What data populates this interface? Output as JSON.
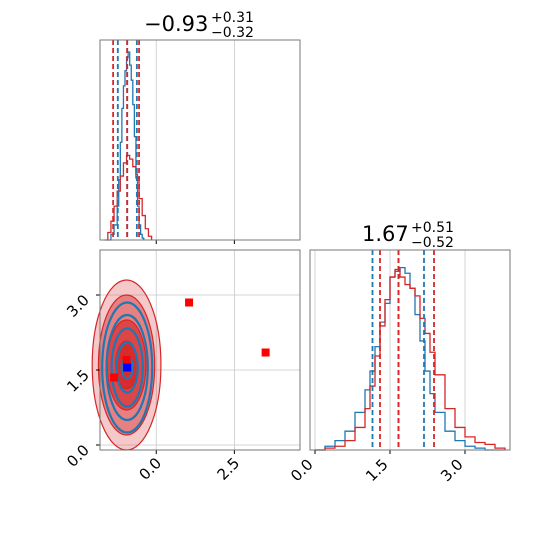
{
  "colors": {
    "blue": "#1f77b4",
    "red": "#d62728",
    "marker_red": "#ff0000",
    "marker_blue": "#0000ff",
    "grid": "#c8c8c8",
    "axes": "#777777"
  },
  "chart_data": [
    {
      "type": "line",
      "panel": "marginal-param-1",
      "title": {
        "value": "−0.93",
        "plus": "+0.31",
        "minus": "−0.32"
      },
      "xlim": [
        -1.8,
        4.6
      ],
      "grid": true,
      "quantile_lines": {
        "blue": [
          -1.23,
          -0.93,
          -0.62
        ],
        "red": [
          -1.38,
          -0.93,
          -0.55
        ]
      },
      "series": [
        {
          "color": "blue",
          "x": [
            -1.55,
            -1.45,
            -1.35,
            -1.25,
            -1.2,
            -1.15,
            -1.1,
            -1.05,
            -1.0,
            -0.95,
            -0.9,
            -0.85,
            -0.8,
            -0.75,
            -0.7,
            -0.65,
            -0.6,
            -0.55,
            -0.5,
            -0.45,
            -0.4
          ],
          "y": [
            0.0,
            0.03,
            0.08,
            0.18,
            0.32,
            0.52,
            0.7,
            0.82,
            0.9,
            0.97,
            1.0,
            0.93,
            0.85,
            0.72,
            0.55,
            0.35,
            0.18,
            0.08,
            0.03,
            0.01,
            0.0
          ]
        },
        {
          "color": "red",
          "x": [
            -1.65,
            -1.55,
            -1.45,
            -1.35,
            -1.25,
            -1.15,
            -1.05,
            -0.95,
            -0.85,
            -0.75,
            -0.65,
            -0.55,
            -0.45,
            -0.35,
            -0.25,
            -0.15
          ],
          "y": [
            0.0,
            0.04,
            0.1,
            0.18,
            0.26,
            0.34,
            0.41,
            0.45,
            0.43,
            0.39,
            0.33,
            0.22,
            0.13,
            0.06,
            0.02,
            0.0
          ]
        }
      ]
    },
    {
      "type": "scatter",
      "panel": "joint-param-1-param-2",
      "xlim": [
        -1.8,
        4.6
      ],
      "ylim": [
        -0.1,
        3.9
      ],
      "x_ticks": [
        "0.0",
        "2.5"
      ],
      "x_tick_values": [
        0.0,
        2.5
      ],
      "y_ticks": [
        "0.0",
        "1.5",
        "3.0"
      ],
      "y_tick_values": [
        0.0,
        1.5,
        3.0
      ],
      "grid": true,
      "contours": {
        "blue_center": [
          -0.93,
          1.55
        ],
        "red_center": [
          -0.95,
          1.6
        ],
        "blue_levels": [
          [
            0.18,
            0.22
          ],
          [
            0.34,
            0.5
          ],
          [
            0.5,
            0.78
          ],
          [
            0.66,
            1.05
          ],
          [
            0.8,
            1.3
          ]
        ],
        "red_levels": [
          [
            0.35,
            0.48
          ],
          [
            0.62,
            0.9
          ],
          [
            0.9,
            1.4
          ],
          [
            1.1,
            1.7
          ]
        ]
      },
      "red_markers": [
        {
          "x": -0.95,
          "y": 1.7
        },
        {
          "x": -1.35,
          "y": 1.35
        },
        {
          "x": 1.05,
          "y": 2.85
        },
        {
          "x": 3.5,
          "y": 1.85
        }
      ],
      "blue_markers": [
        {
          "x": -0.93,
          "y": 1.55
        }
      ]
    },
    {
      "type": "line",
      "panel": "marginal-param-2",
      "title": {
        "value": "1.67",
        "plus": "+0.51",
        "minus": "−0.52"
      },
      "xlim": [
        -0.1,
        3.9
      ],
      "x_ticks": [
        "0.0",
        "1.5",
        "3.0"
      ],
      "x_tick_values": [
        0.0,
        1.5,
        3.0
      ],
      "grid": true,
      "quantile_lines": {
        "blue": [
          1.15,
          1.67,
          2.18
        ],
        "red": [
          1.3,
          1.67,
          2.38
        ]
      },
      "series": [
        {
          "color": "blue",
          "x": [
            0.0,
            0.2,
            0.4,
            0.6,
            0.8,
            1.0,
            1.1,
            1.2,
            1.3,
            1.4,
            1.5,
            1.6,
            1.7,
            1.8,
            1.9,
            2.0,
            2.1,
            2.2,
            2.3,
            2.4,
            2.6,
            2.8,
            3.0,
            3.2,
            3.4,
            3.6,
            3.8
          ],
          "y": [
            0.0,
            0.02,
            0.05,
            0.1,
            0.2,
            0.32,
            0.42,
            0.55,
            0.68,
            0.78,
            0.92,
            0.95,
            0.97,
            0.94,
            0.86,
            0.72,
            0.58,
            0.42,
            0.3,
            0.2,
            0.1,
            0.05,
            0.02,
            0.01,
            0.0,
            0.0,
            0.0
          ]
        },
        {
          "color": "red",
          "x": [
            0.0,
            0.2,
            0.4,
            0.6,
            0.8,
            1.0,
            1.1,
            1.2,
            1.3,
            1.4,
            1.5,
            1.6,
            1.7,
            1.8,
            1.9,
            2.0,
            2.1,
            2.2,
            2.3,
            2.4,
            2.6,
            2.8,
            3.0,
            3.2,
            3.4,
            3.6,
            3.8
          ],
          "y": [
            0.0,
            0.01,
            0.02,
            0.05,
            0.12,
            0.22,
            0.34,
            0.5,
            0.66,
            0.8,
            0.92,
            0.96,
            0.92,
            0.88,
            0.86,
            0.82,
            0.7,
            0.62,
            0.52,
            0.4,
            0.22,
            0.12,
            0.07,
            0.04,
            0.03,
            0.01,
            0.0
          ]
        }
      ]
    }
  ]
}
